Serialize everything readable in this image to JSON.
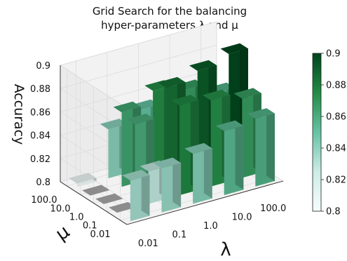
{
  "chart_data": {
    "type": "bar3d",
    "title": "Grid Search for the balancing",
    "subtitle": "hyper-parameters λ and μ",
    "xlabel": "λ",
    "ylabel": "μ",
    "zlabel": "Accuracy",
    "x_categories": [
      "0.01",
      "0.1",
      "1.0",
      "10.0",
      "100.0"
    ],
    "y_categories": [
      "0.01",
      "0.1",
      "1.0",
      "10.0",
      "100.0"
    ],
    "z_ticks": [
      "0.8",
      "0.82",
      "0.84",
      "0.86",
      "0.88",
      "0.9"
    ],
    "zlim": [
      0.8,
      0.9
    ],
    "colorbar": {
      "min": 0.8,
      "max": 0.9,
      "ticks": [
        "0.8",
        "0.82",
        "0.84",
        "0.86",
        "0.88",
        "0.9"
      ]
    },
    "values": [
      [
        0.835,
        0.838,
        0.843,
        0.855,
        0.858
      ],
      [
        0.8,
        0.828,
        0.877,
        0.874,
        0.868
      ],
      [
        0.8,
        0.861,
        0.885,
        0.892,
        0.899
      ],
      [
        0.8,
        0.864,
        0.875,
        0.868,
        0.858
      ],
      [
        0.803,
        0.842,
        0.851,
        0.846,
        0.837
      ]
    ]
  }
}
